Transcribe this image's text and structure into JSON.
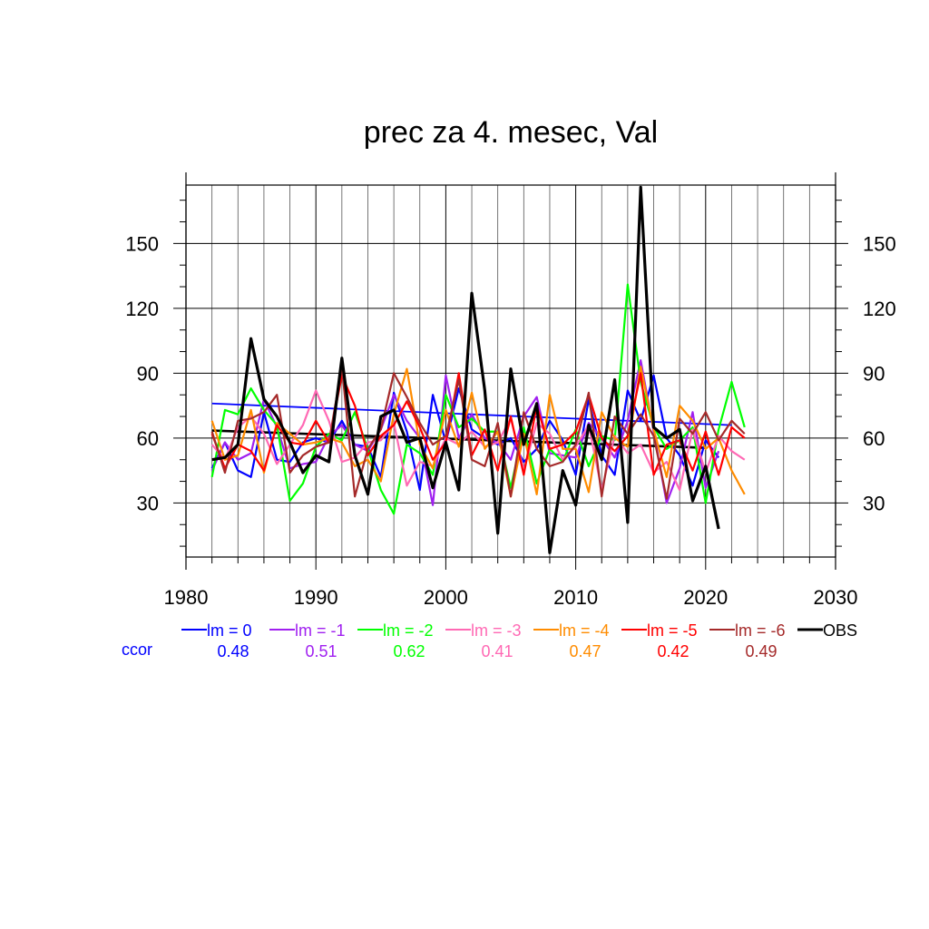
{
  "chart_data": {
    "type": "line",
    "title": "prec za 4. mesec, Val",
    "xlabel": "",
    "ylabel": "",
    "xlim": [
      1980,
      2030
    ],
    "ylim": [
      5,
      177
    ],
    "x_ticks": [
      1980,
      1990,
      2000,
      2010,
      2020,
      2030
    ],
    "y_ticks": [
      30,
      60,
      90,
      120,
      150
    ],
    "grid": true,
    "legend_position": "bottom",
    "corr_label": "ccor",
    "series": [
      {
        "name": "lm = 0",
        "color": "#0000ff",
        "ccor": "0.48",
        "x_start": 1982,
        "values": [
          46,
          58,
          45,
          42,
          72,
          50,
          49,
          58,
          60,
          58,
          68,
          57,
          56,
          42,
          81,
          63,
          36,
          80,
          58,
          83,
          64,
          60,
          57,
          60,
          49,
          55,
          68,
          59,
          43,
          78,
          52,
          43,
          82,
          68,
          89,
          60,
          52,
          38,
          59,
          51
        ]
      },
      {
        "name": "lm = -1",
        "color": "#a020f0",
        "ccor": "0.51",
        "x_start": 1982,
        "values": [
          45,
          58,
          50,
          53,
          78,
          65,
          46,
          48,
          49,
          61,
          66,
          57,
          54,
          64,
          80,
          68,
          60,
          29,
          89,
          60,
          71,
          60,
          58,
          50,
          70,
          79,
          53,
          52,
          51,
          67,
          60,
          51,
          68,
          96,
          63,
          30,
          46,
          72,
          37,
          54
        ]
      },
      {
        "name": "lm = -2",
        "color": "#00ff00",
        "ccor": "0.62",
        "x_start": 1982,
        "values": [
          42,
          73,
          71,
          83,
          73,
          66,
          31,
          39,
          56,
          62,
          59,
          72,
          55,
          36,
          25,
          57,
          53,
          43,
          80,
          65,
          69,
          63,
          63,
          37,
          65,
          39,
          55,
          49,
          64,
          47,
          61,
          59,
          131,
          86,
          65,
          55,
          59,
          65,
          30,
          64,
          86,
          65
        ]
      },
      {
        "name": "lm = -3",
        "color": "#ff69b4",
        "ccor": "0.41",
        "x_start": 1982,
        "values": [
          57,
          50,
          65,
          70,
          62,
          48,
          57,
          66,
          82,
          68,
          49,
          51,
          58,
          59,
          67,
          38,
          49,
          47,
          60,
          57,
          63,
          56,
          58,
          69,
          45,
          67,
          62,
          50,
          56,
          66,
          36,
          61,
          53,
          57,
          44,
          49,
          36,
          64,
          44,
          61,
          54,
          50
        ]
      },
      {
        "name": "lm = -4",
        "color": "#ff8c00",
        "ccor": "0.47",
        "x_start": 1982,
        "values": [
          68,
          50,
          52,
          73,
          44,
          67,
          62,
          57,
          58,
          60,
          58,
          47,
          50,
          40,
          71,
          92,
          57,
          46,
          73,
          56,
          81,
          55,
          63,
          33,
          62,
          34,
          80,
          55,
          55,
          35,
          72,
          60,
          56,
          93,
          64,
          42,
          75,
          68,
          55,
          60,
          45,
          34
        ]
      },
      {
        "name": "lm = -5",
        "color": "#ff0000",
        "ccor": "0.42",
        "x_start": 1982,
        "values": [
          62,
          46,
          57,
          54,
          45,
          66,
          58,
          57,
          68,
          58,
          89,
          75,
          52,
          61,
          66,
          77,
          65,
          50,
          58,
          90,
          52,
          64,
          45,
          70,
          43,
          75,
          55,
          57,
          63,
          80,
          60,
          54,
          61,
          90,
          43,
          57,
          59,
          45,
          63,
          43,
          65,
          60
        ]
      },
      {
        "name": "lm = -6",
        "color": "#a52a2a",
        "ccor": "0.49",
        "x_start": 1982,
        "values": [
          63,
          44,
          68,
          69,
          72,
          80,
          44,
          52,
          56,
          58,
          93,
          33,
          55,
          64,
          90,
          79,
          67,
          57,
          61,
          87,
          50,
          47,
          67,
          33,
          72,
          55,
          47,
          49,
          57,
          81,
          33,
          70,
          62,
          71,
          61,
          32,
          69,
          62,
          72,
          59,
          68,
          62
        ]
      },
      {
        "name": "OBS",
        "color": "#000000",
        "ccor": "",
        "x_start": 1982,
        "values": [
          50,
          51,
          57,
          106,
          78,
          70,
          58,
          44,
          52,
          49,
          97,
          52,
          34,
          70,
          73,
          58,
          60,
          37,
          58,
          36,
          127,
          82,
          16,
          92,
          57,
          76,
          7,
          45,
          29,
          66,
          50,
          87,
          21,
          176,
          65,
          60,
          64,
          31,
          47,
          18
        ]
      }
    ],
    "trend_lines": [
      {
        "color": "#0000ff",
        "x": [
          1982,
          2022
        ],
        "y": [
          76,
          66
        ]
      },
      {
        "color": "#000000",
        "x": [
          1982,
          2020
        ],
        "y": [
          63.5,
          55.5
        ]
      }
    ]
  }
}
